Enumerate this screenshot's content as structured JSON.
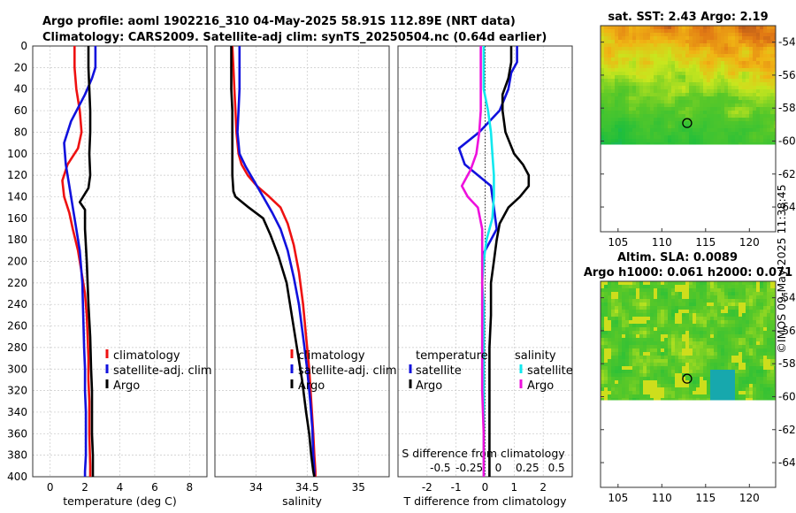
{
  "header": {
    "line1": "Argo profile: aoml 1902216_310 04-May-2025 58.91S 112.89E (NRT data)",
    "line2": "Climatology: CARS2009. Satellite-adj clim: synTS_20250504.nc (0.64d earlier)"
  },
  "credit": "©IMOS 09-May-2025 11:38:45",
  "colors": {
    "climatology": "#ee1111",
    "satellite": "#1111dd",
    "argo": "#000000",
    "cyan": "#11e8ee",
    "magenta": "#ee11dd"
  },
  "chart_data": [
    {
      "type": "line",
      "name": "temperature",
      "xlabel": "temperature (deg C)",
      "ylabel": "",
      "xlim": [
        -1,
        9
      ],
      "ylim": [
        400,
        0
      ],
      "xticks": [
        0,
        2,
        4,
        6,
        8
      ],
      "yticks": [
        0,
        20,
        40,
        60,
        80,
        100,
        120,
        140,
        160,
        180,
        200,
        220,
        240,
        260,
        280,
        300,
        320,
        340,
        360,
        380,
        400
      ],
      "legend": [
        "climatology",
        "satellite-adj. clim",
        "Argo"
      ],
      "series": [
        {
          "name": "climatology",
          "color": "#ee1111",
          "x": [
            1.4,
            1.4,
            1.5,
            1.7,
            1.8,
            1.6,
            1.0,
            0.7,
            0.8,
            1.1,
            1.3,
            1.6,
            1.8,
            2.0,
            2.1,
            2.15,
            2.2,
            2.2,
            2.25,
            2.25,
            2.3,
            2.3
          ],
          "y": [
            0,
            20,
            40,
            60,
            80,
            95,
            110,
            125,
            140,
            155,
            170,
            190,
            210,
            230,
            250,
            270,
            290,
            310,
            330,
            360,
            390,
            400
          ]
        },
        {
          "name": "satellite-adj. clim",
          "color": "#1111dd",
          "x": [
            2.6,
            2.6,
            2.4,
            2.0,
            1.2,
            0.8,
            0.9,
            1.1,
            1.3,
            1.5,
            1.7,
            1.85,
            1.9,
            1.95,
            2.0,
            2.0,
            2.05,
            2.05,
            2.05,
            2.0,
            2.0
          ],
          "y": [
            0,
            20,
            30,
            45,
            70,
            90,
            110,
            130,
            150,
            170,
            190,
            220,
            250,
            280,
            300,
            320,
            340,
            360,
            380,
            395,
            400
          ]
        },
        {
          "name": "Argo",
          "color": "#000000",
          "x": [
            2.2,
            2.2,
            2.25,
            2.3,
            2.3,
            2.25,
            2.3,
            2.2,
            1.7,
            2.0,
            2.0,
            2.1,
            2.2,
            2.3,
            2.35,
            2.4,
            2.4,
            2.4,
            2.45,
            2.45,
            2.45
          ],
          "y": [
            0,
            20,
            40,
            60,
            80,
            100,
            120,
            132,
            145,
            152,
            170,
            200,
            240,
            270,
            300,
            320,
            340,
            360,
            380,
            395,
            400
          ]
        }
      ]
    },
    {
      "type": "line",
      "name": "salinity",
      "xlabel": "salinity",
      "xlim": [
        33.6,
        35.3
      ],
      "ylim": [
        400,
        0
      ],
      "xticks": [
        34,
        34.5,
        35
      ],
      "xticklabels": [
        "34",
        "34.5",
        "35"
      ],
      "legend": [
        "climatology",
        "satellite-adj. clim",
        "Argo"
      ],
      "series": [
        {
          "name": "climatology",
          "color": "#ee1111",
          "x": [
            33.77,
            33.78,
            33.79,
            33.8,
            33.81,
            33.83,
            33.86,
            33.92,
            34.01,
            34.13,
            34.24,
            34.31,
            34.37,
            34.42,
            34.46,
            34.49,
            34.52,
            34.54,
            34.56,
            34.57,
            34.58,
            34.58
          ],
          "y": [
            0,
            20,
            40,
            60,
            80,
            100,
            110,
            120,
            130,
            140,
            150,
            165,
            185,
            210,
            240,
            270,
            300,
            330,
            360,
            380,
            395,
            400
          ]
        },
        {
          "name": "satellite-adj. clim",
          "color": "#1111dd",
          "x": [
            33.84,
            33.84,
            33.84,
            33.83,
            33.82,
            33.84,
            33.9,
            33.98,
            34.07,
            34.16,
            34.24,
            34.31,
            34.37,
            34.42,
            34.46,
            34.5,
            34.53,
            34.55,
            34.56,
            34.57,
            34.57
          ],
          "y": [
            0,
            20,
            40,
            60,
            80,
            100,
            112,
            125,
            140,
            155,
            170,
            190,
            215,
            240,
            270,
            300,
            330,
            355,
            380,
            395,
            400
          ]
        },
        {
          "name": "Argo",
          "color": "#000000",
          "x": [
            33.76,
            33.76,
            33.76,
            33.77,
            33.77,
            33.77,
            33.77,
            33.78,
            33.8,
            33.93,
            34.07,
            34.14,
            34.22,
            34.3,
            34.35,
            34.4,
            34.45,
            34.49,
            34.52,
            34.54,
            34.56,
            34.57
          ],
          "y": [
            0,
            20,
            40,
            60,
            80,
            100,
            120,
            135,
            140,
            150,
            160,
            175,
            195,
            220,
            250,
            280,
            310,
            340,
            360,
            380,
            395,
            400
          ]
        }
      ]
    },
    {
      "type": "line",
      "name": "difference",
      "xlabel": "T difference from climatology",
      "toplabel": "S difference from climatology",
      "xlim": [
        -3,
        3
      ],
      "ylim": [
        400,
        0
      ],
      "xticks": [
        -2,
        -1,
        0,
        1,
        2
      ],
      "xticklabels": [
        "-2",
        "-1",
        "0",
        "1",
        "2"
      ],
      "top_ticklabels": [
        "-0.5",
        "-0.25",
        "0",
        "0.25",
        "0.5"
      ],
      "legend_left_title": "temperature",
      "legend_right_title": "salinity",
      "legend_left": [
        "satellite",
        "Argo"
      ],
      "legend_right": [
        "satellite",
        "Argo"
      ],
      "series": [
        {
          "name": "temperature satellite",
          "color": "#1111dd",
          "x": [
            1.1,
            1.1,
            0.9,
            0.8,
            0.5,
            -0.2,
            -0.9,
            -0.7,
            0.2,
            0.3,
            0.4,
            0.2,
            0.0,
            -0.1
          ],
          "y": [
            0,
            15,
            25,
            40,
            60,
            80,
            95,
            110,
            130,
            150,
            170,
            180,
            190,
            195
          ]
        },
        {
          "name": "temperature Argo",
          "color": "#000000",
          "x": [
            0.9,
            0.9,
            0.8,
            0.6,
            0.6,
            0.7,
            1.0,
            1.3,
            1.5,
            1.5,
            1.2,
            0.8,
            0.5,
            0.4,
            0.3,
            0.2,
            0.2,
            0.15,
            0.15,
            0.15,
            0.15,
            0.15,
            0.15
          ],
          "y": [
            0,
            15,
            30,
            45,
            60,
            80,
            100,
            110,
            120,
            130,
            140,
            150,
            165,
            180,
            200,
            220,
            250,
            280,
            300,
            320,
            350,
            380,
            400
          ]
        },
        {
          "name": "salinity satellite",
          "color": "#11e8ee",
          "x": [
            -0.05,
            -0.05,
            -0.05,
            0.1,
            0.2,
            0.25,
            0.3,
            0.3,
            0.25,
            0.05,
            -0.05,
            -0.1,
            -0.05,
            -0.05,
            -0.05,
            -0.05,
            -0.05,
            -0.05,
            -0.05
          ],
          "y": [
            0,
            20,
            40,
            60,
            80,
            100,
            120,
            140,
            160,
            180,
            200,
            220,
            240,
            260,
            280,
            300,
            320,
            360,
            400
          ]
        },
        {
          "name": "salinity Argo",
          "color": "#ee11dd",
          "x": [
            -0.15,
            -0.15,
            -0.15,
            -0.15,
            -0.2,
            -0.3,
            -0.5,
            -0.8,
            -0.6,
            -0.25,
            -0.1,
            -0.1,
            -0.1,
            -0.1,
            -0.1,
            -0.1,
            -0.05,
            -0.05
          ],
          "y": [
            0,
            20,
            40,
            60,
            80,
            100,
            115,
            130,
            140,
            150,
            170,
            200,
            220,
            250,
            280,
            320,
            360,
            400
          ]
        }
      ]
    },
    {
      "type": "heatmap",
      "name": "sst_map",
      "title": "sat. SST: 2.43 Argo: 2.19",
      "xlim": [
        103,
        123
      ],
      "ylim": [
        -65.5,
        -53
      ],
      "xticks": [
        105,
        110,
        115,
        120
      ],
      "yticks": [
        -54,
        -56,
        -58,
        -60,
        -62,
        -64
      ],
      "argo_position": {
        "lon": 112.89,
        "lat": -58.91
      },
      "data_lat_min": -60.2
    },
    {
      "type": "heatmap",
      "name": "sla_map",
      "title": "Altim. SLA: 0.0089",
      "title2": "Argo h1000: 0.061 h2000: 0.071",
      "xlim": [
        103,
        123
      ],
      "ylim": [
        -65.5,
        -53
      ],
      "xticks": [
        105,
        110,
        115,
        120
      ],
      "yticks": [
        -54,
        -56,
        -58,
        -60,
        -62,
        -64
      ],
      "argo_position": {
        "lon": 112.89,
        "lat": -58.91
      },
      "data_lat_min": -60.2
    }
  ]
}
